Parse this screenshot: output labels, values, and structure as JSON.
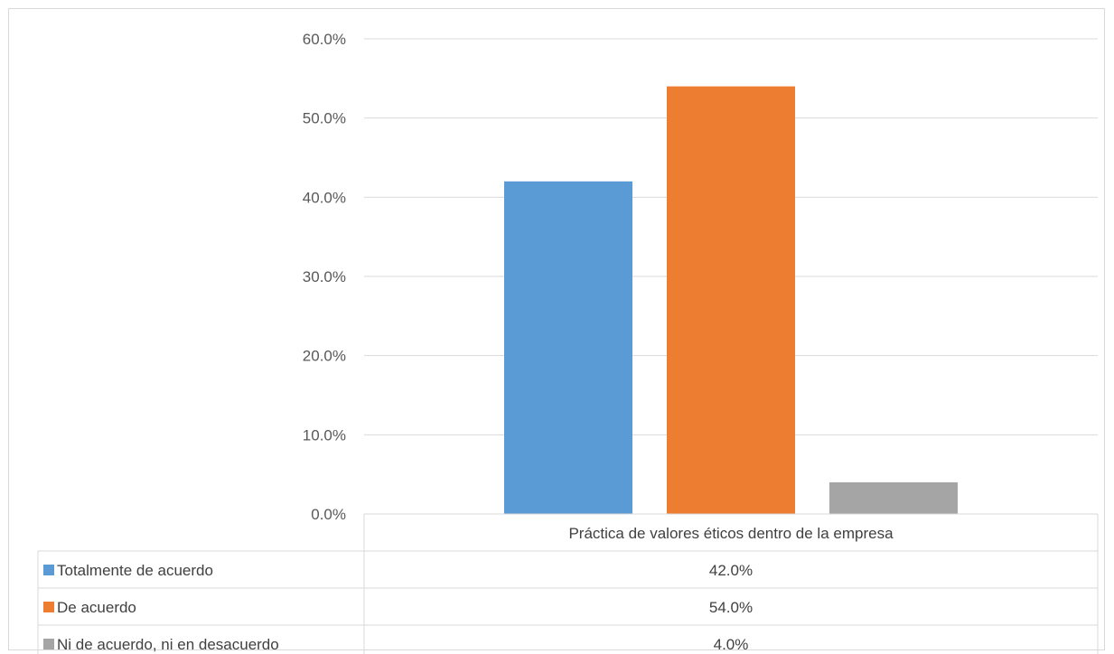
{
  "chart_data": {
    "type": "bar",
    "categories": [
      "Práctica de valores éticos dentro de la empresa"
    ],
    "series": [
      {
        "name": "Totalmente de acuerdo",
        "values": [
          42.0
        ],
        "label": "42.0%",
        "color": "#5b9bd5"
      },
      {
        "name": "De acuerdo",
        "values": [
          54.0
        ],
        "label": "54.0%",
        "color": "#ed7d31"
      },
      {
        "name": "Ni de acuerdo, ni en desacuerdo",
        "values": [
          4.0
        ],
        "label": "4.0%",
        "color": "#a5a5a5"
      }
    ],
    "ylim": [
      0,
      60
    ],
    "yticks": [
      "0.0%",
      "10.0%",
      "20.0%",
      "30.0%",
      "40.0%",
      "50.0%",
      "60.0%"
    ],
    "grid": true,
    "legend": "data-table"
  }
}
